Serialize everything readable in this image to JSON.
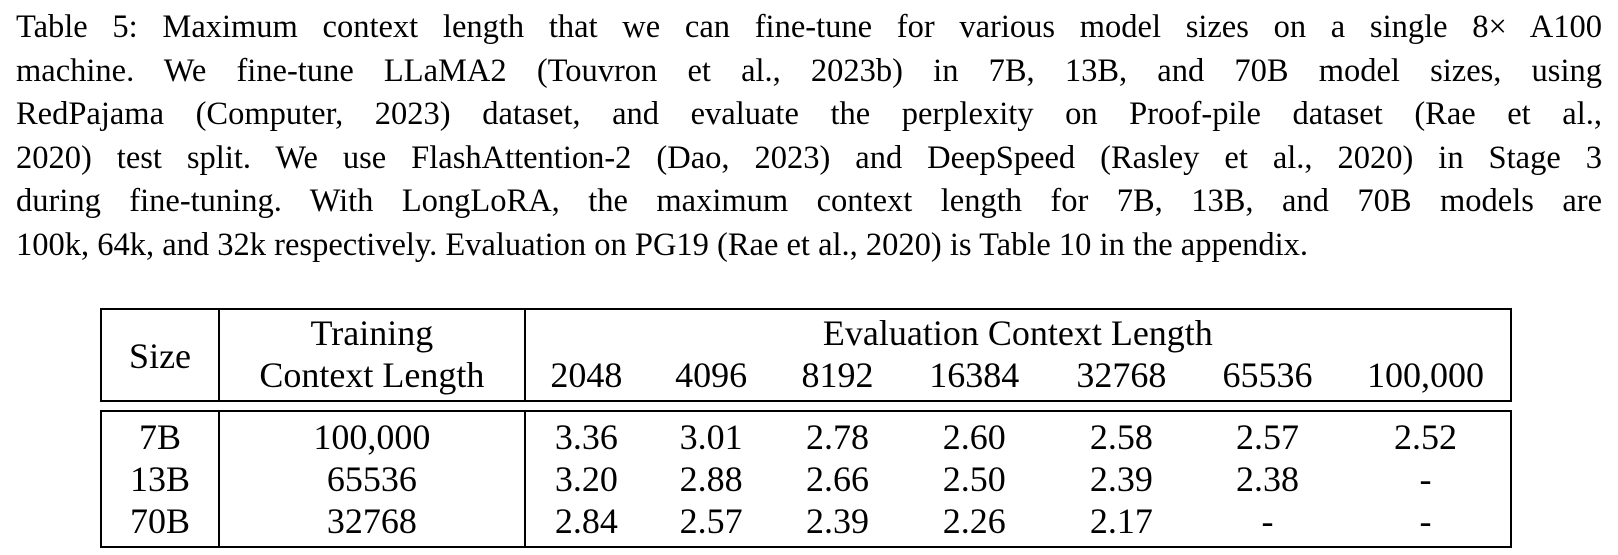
{
  "caption": {
    "lines": [
      "Table 5: Maximum context length that we can fine-tune for various model sizes on a single 8× A100",
      "machine. We fine-tune LLaMA2 (Touvron et al., 2023b) in 7B, 13B, and 70B model sizes, using",
      "RedPajama (Computer, 2023) dataset, and evaluate the perplexity on Proof-pile dataset (Rae et al.,",
      "2020) test split. We use FlashAttention-2 (Dao, 2023) and DeepSpeed (Rasley et al., 2020) in Stage 3",
      "during fine-tuning. With LongLoRA, the maximum context length for 7B, 13B, and 70B models are",
      "100k, 64k, and 32k respectively. Evaluation on PG19 (Rae et al., 2020) is Table 10 in the appendix."
    ]
  },
  "table": {
    "col_size": "Size",
    "col_training_line1": "Training",
    "col_training_line2": "Context Length",
    "col_eval_group": "Evaluation Context Length",
    "eval_lengths": [
      "2048",
      "4096",
      "8192",
      "16384",
      "32768",
      "65536",
      "100,000"
    ],
    "rows": [
      {
        "size": "7B",
        "training": "100,000",
        "values": [
          "3.36",
          "3.01",
          "2.78",
          "2.60",
          "2.58",
          "2.57",
          "2.52"
        ]
      },
      {
        "size": "13B",
        "training": "65536",
        "values": [
          "3.20",
          "2.88",
          "2.66",
          "2.50",
          "2.39",
          "2.38",
          "-"
        ]
      },
      {
        "size": "70B",
        "training": "32768",
        "values": [
          "2.84",
          "2.57",
          "2.39",
          "2.26",
          "2.17",
          "-",
          "-"
        ]
      }
    ]
  }
}
